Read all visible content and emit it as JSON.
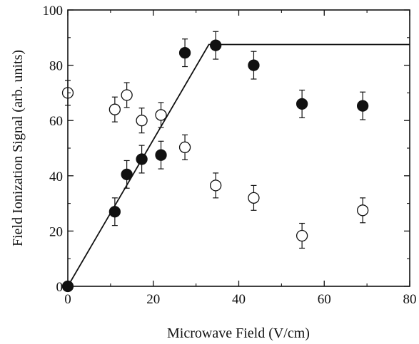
{
  "chart_data": {
    "type": "scatter",
    "xlabel": "Microwave Field (V/cm)",
    "ylabel": "Field Ionization Signal (arb. units)",
    "xlim": [
      0,
      80
    ],
    "ylim": [
      0,
      100
    ],
    "x_ticks": [
      0,
      20,
      40,
      60,
      80
    ],
    "y_ticks": [
      0,
      20,
      40,
      60,
      80,
      100
    ],
    "x_tick_labels": [
      "0",
      "20",
      "40",
      "60",
      "80"
    ],
    "y_tick_labels": [
      "0",
      "20",
      "40",
      "60",
      "80",
      "100"
    ],
    "grid": false,
    "series": [
      {
        "marker": "filled-circle",
        "points": [
          {
            "x": 0,
            "y": 0,
            "err": 0
          },
          {
            "x": 11,
            "y": 27,
            "err": 5
          },
          {
            "x": 13.8,
            "y": 40.5,
            "err": 5
          },
          {
            "x": 17.3,
            "y": 46,
            "err": 5
          },
          {
            "x": 21.8,
            "y": 47.5,
            "err": 5
          },
          {
            "x": 27.4,
            "y": 84.5,
            "err": 5
          },
          {
            "x": 34.6,
            "y": 87.2,
            "err": 5
          },
          {
            "x": 43.5,
            "y": 80,
            "err": 5
          },
          {
            "x": 54.8,
            "y": 66,
            "err": 5
          },
          {
            "x": 69,
            "y": 65.3,
            "err": 5
          }
        ]
      },
      {
        "marker": "open-circle",
        "points": [
          {
            "x": 0,
            "y": 70,
            "err": 4.5
          },
          {
            "x": 11,
            "y": 64,
            "err": 4.5
          },
          {
            "x": 13.8,
            "y": 69.2,
            "err": 4.5
          },
          {
            "x": 17.3,
            "y": 60,
            "err": 4.5
          },
          {
            "x": 21.8,
            "y": 62,
            "err": 4.5
          },
          {
            "x": 27.4,
            "y": 50.3,
            "err": 4.5
          },
          {
            "x": 34.6,
            "y": 36.5,
            "err": 4.5
          },
          {
            "x": 43.5,
            "y": 32,
            "err": 4.5
          },
          {
            "x": 54.8,
            "y": 18.3,
            "err": 4.5
          },
          {
            "x": 69,
            "y": 27.5,
            "err": 4.5
          }
        ]
      }
    ],
    "fit_line": {
      "points": [
        [
          0,
          0
        ],
        [
          33,
          87.5
        ],
        [
          80,
          87.5
        ]
      ]
    }
  }
}
